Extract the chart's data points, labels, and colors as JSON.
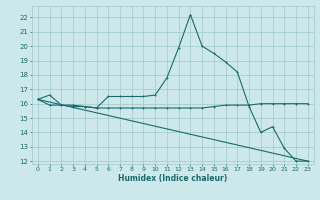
{
  "xlabel": "Humidex (Indice chaleur)",
  "xlim": [
    -0.5,
    23.5
  ],
  "ylim": [
    11.8,
    22.8
  ],
  "yticks": [
    12,
    13,
    14,
    15,
    16,
    17,
    18,
    19,
    20,
    21,
    22
  ],
  "xticks": [
    0,
    1,
    2,
    3,
    4,
    5,
    6,
    7,
    8,
    9,
    10,
    11,
    12,
    13,
    14,
    15,
    16,
    17,
    18,
    19,
    20,
    21,
    22,
    23
  ],
  "bg_color": "#cce8ea",
  "grid_color": "#a0c8cc",
  "line_color": "#1a6b6b",
  "series1": {
    "x": [
      0,
      1,
      2,
      3,
      4,
      5,
      6,
      7,
      8,
      9,
      10,
      11,
      12,
      13,
      14,
      15,
      16,
      17,
      18,
      19,
      20,
      21,
      22,
      23
    ],
    "y": [
      16.3,
      16.6,
      15.9,
      15.9,
      15.8,
      15.7,
      16.5,
      16.5,
      16.5,
      16.5,
      16.6,
      17.8,
      19.9,
      22.2,
      20.0,
      19.5,
      18.9,
      18.2,
      15.8,
      14.0,
      14.4,
      12.9,
      12.0,
      12.0
    ]
  },
  "series2": {
    "x": [
      0,
      1,
      2,
      3,
      4,
      5,
      6,
      7,
      8,
      9,
      10,
      11,
      12,
      13,
      14,
      15,
      16,
      17,
      18,
      19,
      20,
      21,
      22,
      23
    ],
    "y": [
      16.3,
      15.9,
      15.9,
      15.8,
      15.8,
      15.7,
      15.7,
      15.7,
      15.7,
      15.7,
      15.7,
      15.7,
      15.7,
      15.7,
      15.7,
      15.8,
      15.9,
      15.9,
      15.9,
      16.0,
      16.0,
      16.0,
      16.0,
      16.0
    ]
  },
  "series3": {
    "x": [
      0,
      23
    ],
    "y": [
      16.3,
      12.0
    ]
  }
}
